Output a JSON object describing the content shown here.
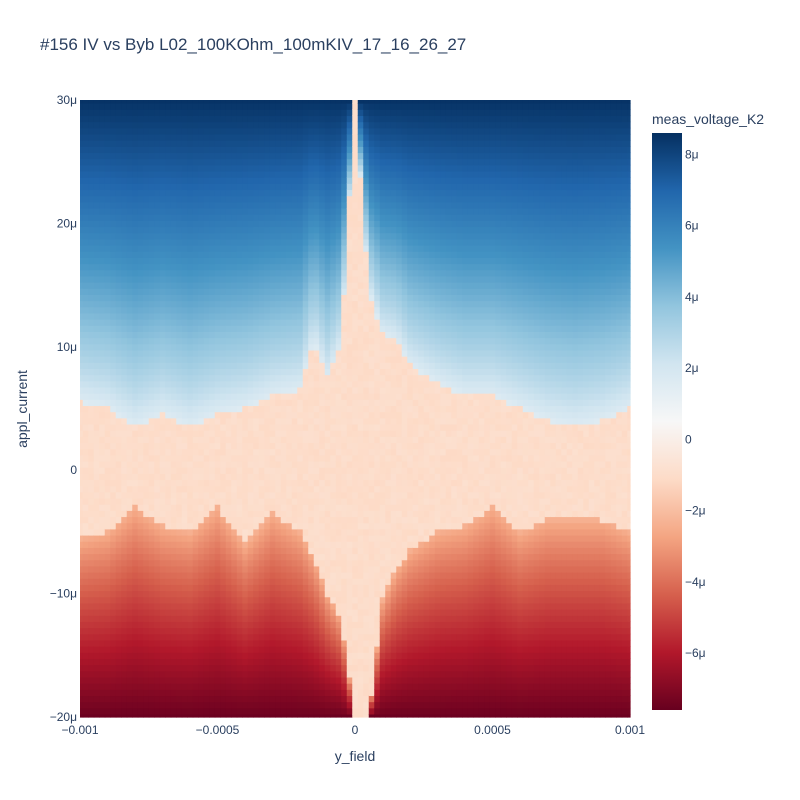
{
  "chart_data": {
    "type": "heatmap",
    "title": "#156 IV vs Byb L02_100KOhm_100mKIV_17_16_26_27",
    "xlabel": "y_field",
    "ylabel": "appl_current",
    "colorbar_title": "meas_voltage_K2",
    "x_range": [
      -0.001,
      0.001
    ],
    "y_range": [
      -2e-05,
      3e-05
    ],
    "z_range": [
      -7.6e-06,
      8.6e-06
    ],
    "colorscale": "RdBu",
    "x_ticks": [
      {
        "value": -0.001,
        "label": "−0.001"
      },
      {
        "value": -0.0005,
        "label": "−0.0005"
      },
      {
        "value": 0,
        "label": "0"
      },
      {
        "value": 0.0005,
        "label": "0.0005"
      },
      {
        "value": 0.001,
        "label": "0.001"
      }
    ],
    "y_ticks": [
      {
        "value": -2e-05,
        "label": "−20μ"
      },
      {
        "value": -1e-05,
        "label": "−10μ"
      },
      {
        "value": 0,
        "label": "0"
      },
      {
        "value": 1e-05,
        "label": "10μ"
      },
      {
        "value": 2e-05,
        "label": "20μ"
      },
      {
        "value": 3e-05,
        "label": "30μ"
      }
    ],
    "colorbar_ticks": [
      {
        "value": 8e-06,
        "label": "8μ"
      },
      {
        "value": 6e-06,
        "label": "6μ"
      },
      {
        "value": 4e-06,
        "label": "4μ"
      },
      {
        "value": 2e-06,
        "label": "2μ"
      },
      {
        "value": 0,
        "label": "0"
      },
      {
        "value": -2e-06,
        "label": "−2μ"
      },
      {
        "value": -4e-06,
        "label": "−4μ"
      },
      {
        "value": -6e-06,
        "label": "−6μ"
      }
    ],
    "x_points": 101,
    "y_points": 101,
    "switching_current_upper": {
      "x": [
        -0.001,
        -0.0009,
        -0.0008,
        -0.0007,
        -0.0006,
        -0.0005,
        -0.0004,
        -0.0003,
        -0.0002,
        -0.00015,
        -0.0001,
        -5e-05,
        0,
        5e-05,
        0.0001,
        0.00015,
        0.0002,
        0.0003,
        0.0004,
        0.0005,
        0.0006,
        0.0007,
        0.0008,
        0.0009,
        0.001
      ],
      "y": [
        5.5e-06,
        5e-06,
        3.5e-06,
        4.5e-06,
        3.5e-06,
        4.5e-06,
        5e-06,
        6e-06,
        6.5e-06,
        1.05e-05,
        7.5e-06,
        1e-05,
        3e-05,
        1.45e-05,
        1.1e-05,
        1.05e-05,
        8.5e-06,
        7e-06,
        6e-06,
        6e-06,
        5e-06,
        4e-06,
        3.5e-06,
        4e-06,
        5e-06
      ]
    },
    "switching_current_lower": {
      "x": [
        -0.001,
        -0.0009,
        -0.0008,
        -0.0007,
        -0.0006,
        -0.0005,
        -0.0004,
        -0.0003,
        -0.0002,
        -0.00015,
        -0.0001,
        -5e-05,
        0,
        5e-05,
        0.0001,
        0.00015,
        0.0002,
        0.0003,
        0.0004,
        0.0005,
        0.0006,
        0.0007,
        0.0008,
        0.0009,
        0.001
      ],
      "y": [
        -5.5e-06,
        -5e-06,
        -3e-06,
        -4.5e-06,
        -5e-06,
        -3e-06,
        -6e-06,
        -3.5e-06,
        -5e-06,
        -7e-06,
        -1e-05,
        -1.2e-05,
        -2e-05,
        -2e-05,
        -1.05e-05,
        -8e-06,
        -6.5e-06,
        -5e-06,
        -4.5e-06,
        -3e-06,
        -5e-06,
        -4e-06,
        -4e-06,
        -4e-06,
        -5e-06
      ]
    },
    "saturation_voltage": {
      "positive": 8.5e-06,
      "negative": -7.5e-06
    },
    "colorbar_range": [
      -7.6e-06,
      8.6e-06
    ],
    "grid": false
  }
}
